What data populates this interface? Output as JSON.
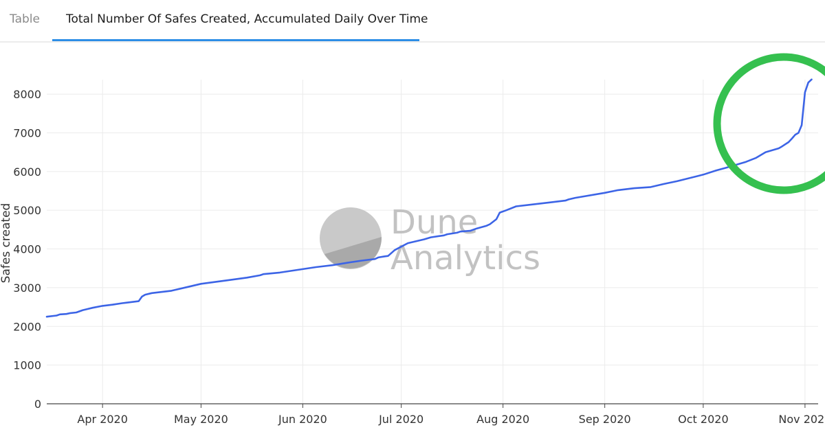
{
  "tabs": [
    {
      "label": "Table",
      "active": false
    },
    {
      "label": "Total Number Of Safes Created, Accumulated Daily Over Time",
      "active": true
    }
  ],
  "watermark": {
    "line1": "Dune",
    "line2": "Analytics"
  },
  "colors": {
    "series": "#3c64e6",
    "highlight": "#35c04f",
    "tab_accent": "#2d8ee6"
  },
  "annotation": {
    "shape": "circle",
    "color": "#35c04f",
    "around": "late Oct – early Nov 2020 jump"
  },
  "chart_data": {
    "type": "line",
    "title": "Total Number Of Safes Created, Accumulated Daily Over Time",
    "xlabel": "",
    "ylabel": "Safes created",
    "xlim": [
      "2020-03-15",
      "2020-11-05"
    ],
    "ylim": [
      0,
      8800
    ],
    "y_ticks": [
      0,
      1000,
      2000,
      3000,
      4000,
      5000,
      6000,
      7000,
      8000
    ],
    "x_ticks": [
      {
        "date": "2020-04-01",
        "label": "Apr 2020"
      },
      {
        "date": "2020-05-01",
        "label": "May 2020"
      },
      {
        "date": "2020-06-01",
        "label": "Jun 2020"
      },
      {
        "date": "2020-07-01",
        "label": "Jul 2020"
      },
      {
        "date": "2020-08-01",
        "label": "Aug 2020"
      },
      {
        "date": "2020-09-01",
        "label": "Sep 2020"
      },
      {
        "date": "2020-10-01",
        "label": "Oct 2020"
      },
      {
        "date": "2020-11-01",
        "label": "Nov 2020"
      }
    ],
    "grid": true,
    "legend": "none",
    "series": [
      {
        "x": [
          "2020-03-15",
          "2020-03-18",
          "2020-03-19",
          "2020-03-21",
          "2020-03-22",
          "2020-03-24",
          "2020-03-26",
          "2020-03-27",
          "2020-03-29",
          "2020-04-01",
          "2020-04-04",
          "2020-04-07",
          "2020-04-08",
          "2020-04-12",
          "2020-04-13",
          "2020-04-14",
          "2020-04-16",
          "2020-04-22",
          "2020-04-27",
          "2020-05-01",
          "2020-05-10",
          "2020-05-15",
          "2020-05-19",
          "2020-05-20",
          "2020-05-25",
          "2020-06-01",
          "2020-06-05",
          "2020-06-10",
          "2020-06-15",
          "2020-06-19",
          "2020-06-23",
          "2020-06-24",
          "2020-06-26",
          "2020-06-27",
          "2020-06-29",
          "2020-07-01",
          "2020-07-03",
          "2020-07-08",
          "2020-07-10",
          "2020-07-14",
          "2020-07-15",
          "2020-07-18",
          "2020-07-19",
          "2020-07-22",
          "2020-07-24",
          "2020-07-27",
          "2020-07-28",
          "2020-07-30",
          "2020-07-31",
          "2020-08-02",
          "2020-08-05",
          "2020-08-15",
          "2020-08-20",
          "2020-08-21",
          "2020-08-23",
          "2020-09-01",
          "2020-09-05",
          "2020-09-10",
          "2020-09-15",
          "2020-09-19",
          "2020-09-23",
          "2020-10-01",
          "2020-10-05",
          "2020-10-08",
          "2020-10-10",
          "2020-10-14",
          "2020-10-17",
          "2020-10-20",
          "2020-10-24",
          "2020-10-25",
          "2020-10-27",
          "2020-10-28",
          "2020-10-29",
          "2020-10-30",
          "2020-10-31",
          "2020-11-01",
          "2020-11-02",
          "2020-11-03"
        ],
        "y": [
          2250,
          2280,
          2310,
          2320,
          2340,
          2360,
          2420,
          2440,
          2480,
          2530,
          2560,
          2600,
          2610,
          2650,
          2770,
          2820,
          2860,
          2920,
          3020,
          3100,
          3200,
          3260,
          3320,
          3350,
          3390,
          3480,
          3530,
          3580,
          3650,
          3700,
          3740,
          3780,
          3810,
          3820,
          3970,
          4060,
          4150,
          4250,
          4300,
          4350,
          4380,
          4420,
          4450,
          4470,
          4530,
          4600,
          4640,
          4770,
          4940,
          5000,
          5100,
          5200,
          5250,
          5280,
          5320,
          5450,
          5520,
          5570,
          5600,
          5680,
          5750,
          5920,
          6030,
          6100,
          6150,
          6250,
          6350,
          6500,
          6600,
          6650,
          6760,
          6850,
          6950,
          7000,
          7200,
          8050,
          8300,
          8380
        ]
      }
    ]
  }
}
